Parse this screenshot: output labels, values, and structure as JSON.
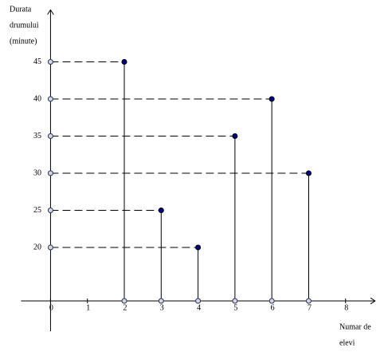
{
  "chart_data": {
    "type": "stem",
    "ylabel_lines": [
      "Durata",
      "drumului",
      "(minute)"
    ],
    "xlabel_lines": [
      "Numar de",
      "elevi"
    ],
    "x": [
      2,
      3,
      4,
      5,
      6,
      7
    ],
    "values": [
      45,
      25,
      20,
      35,
      40,
      30
    ],
    "color": "#00008b",
    "xlim": [
      -0.8,
      8.8
    ],
    "xticks": [
      0,
      1,
      2,
      3,
      4,
      5,
      6,
      7,
      8
    ],
    "ylim": [
      12.8,
      52
    ],
    "yticks": [
      20,
      25,
      30,
      35,
      40,
      45
    ]
  }
}
